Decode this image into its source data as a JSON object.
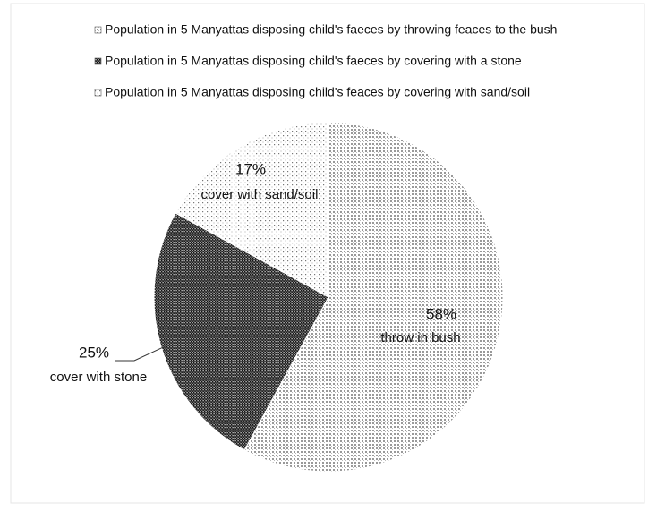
{
  "chart_data": {
    "type": "pie",
    "legend": [
      "Population in 5 Manyattas disposing child's faeces by throwing feaces to the bush",
      "Population in 5 Manyattas disposing child's faeces by covering with a stone",
      "Population in 5 Manyattas disposing child's feaces by covering with sand/soil"
    ],
    "categories": [
      "throw in bush",
      "cover with stone",
      "cover with sand/soil"
    ],
    "values": [
      58,
      25,
      17
    ],
    "value_labels": [
      "58%",
      "25%",
      "17%"
    ],
    "patterns": [
      "grid-dots",
      "dense-dots",
      "sparse-dots"
    ]
  }
}
